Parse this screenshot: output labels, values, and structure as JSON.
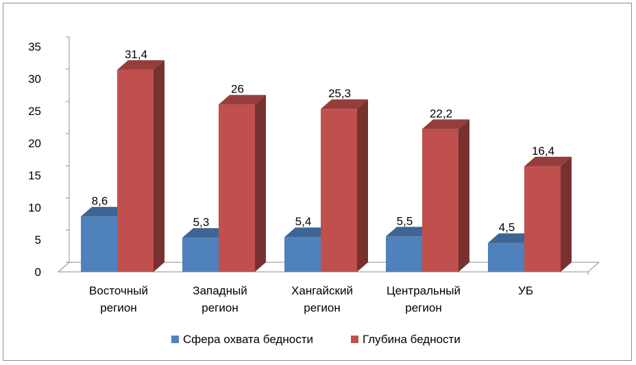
{
  "chart_data": {
    "type": "bar",
    "style": "3d-clustered-column",
    "categories": [
      [
        "Восточный",
        "регион"
      ],
      [
        "Западный",
        "регион"
      ],
      [
        "Хангайский",
        "регион"
      ],
      [
        "Центральный",
        "регион"
      ],
      [
        "УБ"
      ]
    ],
    "series": [
      {
        "name": "Сфера охвата бедности",
        "color": "#4f81bd",
        "values": [
          8.6,
          5.3,
          5.4,
          5.5,
          4.5
        ],
        "labels": [
          "8,6",
          "5,3",
          "5,4",
          "5,5",
          "4,5"
        ]
      },
      {
        "name": "Глубина бедности",
        "color": "#c0504d",
        "values": [
          31.4,
          26,
          25.3,
          22.2,
          16.4
        ],
        "labels": [
          "31,4",
          "26",
          "25,3",
          "22,2",
          "16,4"
        ]
      }
    ],
    "yticks": [
      "0",
      "5",
      "10",
      "15",
      "20",
      "25",
      "30",
      "35"
    ],
    "ylim": [
      0,
      35
    ],
    "title": "",
    "xlabel": "",
    "ylabel": "",
    "legend_position": "bottom",
    "grid": false
  }
}
